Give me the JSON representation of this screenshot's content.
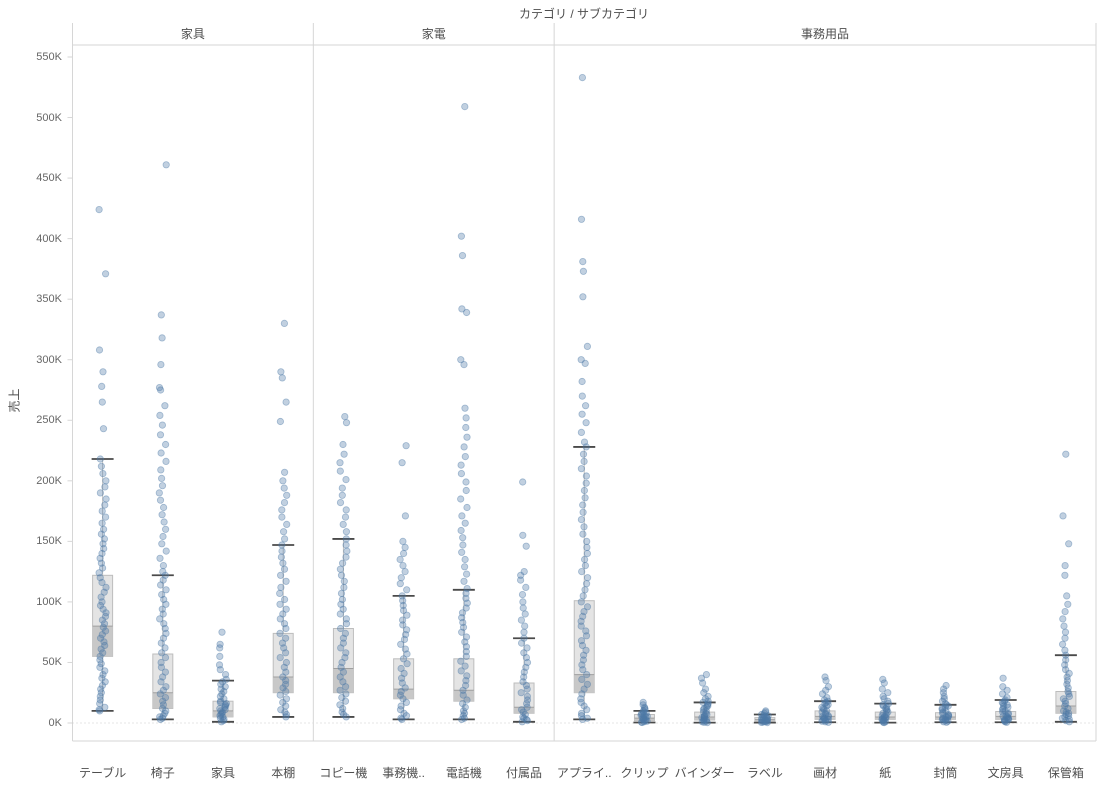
{
  "colors": {
    "point": "#4e79a7",
    "box_fill": "#e4e4e4",
    "box_fill_lower": "#c8c8c8",
    "box_border": "#bdbdbd",
    "median": "#a0a0a0",
    "whisker": "#4a4a4a",
    "whisker_line": "#c2c2c2",
    "grid": "#c9c9c9",
    "axis": "#d6d6d6",
    "header_text": "#4e4e4e",
    "tick_text": "#666666"
  },
  "chart_data": {
    "type": "scatter",
    "subtype": "boxplot-with-jittered-points",
    "title": "カテゴリ / サブカテゴリ",
    "ylabel": "売上",
    "ylim": [
      0,
      550
    ],
    "y_unit": "K",
    "y_ticks": [
      "0K",
      "50K",
      "100K",
      "150K",
      "200K",
      "250K",
      "300K",
      "350K",
      "400K",
      "450K",
      "500K",
      "550K"
    ],
    "grid": "zero-line-dotted",
    "legend": "none",
    "groups": [
      {
        "label": "家具",
        "categories": [
          "テーブル",
          "椅子",
          "家具",
          "本棚"
        ]
      },
      {
        "label": "家電",
        "categories": [
          "コピー機",
          "事務機..",
          "電話機",
          "付属品"
        ]
      },
      {
        "label": "事務用品",
        "categories": [
          "アプライ..",
          "クリップ",
          "バインダー",
          "ラベル",
          "画材",
          "紙",
          "封筒",
          "文房具",
          "保管箱"
        ]
      }
    ],
    "series": [
      {
        "label": "テーブル",
        "group": "家具",
        "box": {
          "whisker_low": 10,
          "q1": 55,
          "median": 80,
          "q3": 122,
          "whisker_high": 218
        },
        "points": [
          424,
          371,
          308,
          290,
          278,
          265,
          243,
          218,
          212,
          206,
          200,
          195,
          190,
          185,
          180,
          175,
          170,
          165,
          160,
          156,
          152,
          148,
          144,
          140,
          136,
          132,
          128,
          124,
          120,
          116,
          112,
          108,
          104,
          100,
          97,
          94,
          91,
          88,
          85,
          82,
          79,
          76,
          73,
          70,
          67,
          64,
          61,
          58,
          55,
          52,
          49,
          46,
          43,
          40,
          37,
          34,
          31,
          28,
          25,
          22,
          19,
          16,
          13,
          11,
          10
        ]
      },
      {
        "label": "椅子",
        "group": "家具",
        "box": {
          "whisker_low": 3,
          "q1": 12,
          "median": 25,
          "q3": 57,
          "whisker_high": 122
        },
        "points": [
          461,
          337,
          318,
          296,
          277,
          275,
          262,
          254,
          246,
          238,
          230,
          223,
          216,
          209,
          202,
          196,
          190,
          184,
          178,
          172,
          166,
          160,
          154,
          148,
          142,
          136,
          130,
          125,
          122,
          118,
          114,
          110,
          106,
          102,
          98,
          94,
          90,
          86,
          82,
          78,
          74,
          70,
          66,
          62,
          58,
          54,
          50,
          46,
          42,
          38,
          34,
          30,
          27,
          24,
          21,
          18,
          15,
          12,
          10,
          8,
          6,
          5,
          4,
          3
        ]
      },
      {
        "label": "家具",
        "group": "家具",
        "box": {
          "whisker_low": 1,
          "q1": 5,
          "median": 10,
          "q3": 18,
          "whisker_high": 35
        },
        "points": [
          75,
          65,
          62,
          55,
          48,
          44,
          40,
          36,
          34,
          32,
          30,
          28,
          26,
          24,
          22,
          20,
          18,
          17,
          16,
          15,
          14,
          13,
          12,
          11,
          10,
          9,
          8,
          7,
          6,
          5,
          4,
          3,
          2,
          1
        ]
      },
      {
        "label": "本棚",
        "group": "家具",
        "box": {
          "whisker_low": 5,
          "q1": 25,
          "median": 38,
          "q3": 74,
          "whisker_high": 147
        },
        "points": [
          330,
          290,
          285,
          265,
          249,
          207,
          200,
          194,
          188,
          182,
          176,
          170,
          164,
          158,
          152,
          147,
          142,
          137,
          132,
          127,
          122,
          117,
          112,
          107,
          102,
          98,
          94,
          90,
          86,
          82,
          78,
          74,
          70,
          66,
          62,
          58,
          54,
          50,
          46,
          42,
          38,
          35,
          32,
          29,
          26,
          23,
          20,
          17,
          14,
          11,
          9,
          7,
          5
        ]
      },
      {
        "label": "コピー機",
        "group": "家電",
        "box": {
          "whisker_low": 5,
          "q1": 25,
          "median": 45,
          "q3": 78,
          "whisker_high": 152
        },
        "points": [
          253,
          248,
          230,
          222,
          215,
          208,
          201,
          194,
          188,
          182,
          176,
          170,
          164,
          158,
          152,
          147,
          142,
          137,
          132,
          127,
          122,
          117,
          112,
          107,
          102,
          98,
          94,
          90,
          86,
          82,
          78,
          74,
          70,
          66,
          62,
          58,
          54,
          50,
          46,
          42,
          38,
          34,
          30,
          27,
          24,
          21,
          18,
          15,
          12,
          9,
          7,
          5
        ]
      },
      {
        "label": "事務機..",
        "group": "家電",
        "box": {
          "whisker_low": 3,
          "q1": 20,
          "median": 28,
          "q3": 53,
          "whisker_high": 105
        },
        "points": [
          229,
          215,
          171,
          150,
          145,
          140,
          135,
          130,
          125,
          120,
          115,
          110,
          105,
          101,
          97,
          93,
          89,
          85,
          81,
          77,
          73,
          69,
          65,
          61,
          57,
          53,
          49,
          45,
          41,
          37,
          33,
          29,
          26,
          23,
          20,
          17,
          14,
          11,
          8,
          6,
          4,
          3
        ]
      },
      {
        "label": "電話機",
        "group": "家電",
        "box": {
          "whisker_low": 3,
          "q1": 18,
          "median": 27,
          "q3": 53,
          "whisker_high": 110
        },
        "points": [
          509,
          402,
          386,
          342,
          339,
          300,
          296,
          260,
          252,
          244,
          236,
          228,
          220,
          213,
          206,
          199,
          192,
          185,
          178,
          171,
          165,
          159,
          153,
          147,
          141,
          135,
          129,
          123,
          117,
          111,
          107,
          103,
          99,
          95,
          91,
          87,
          83,
          79,
          75,
          71,
          67,
          63,
          59,
          55,
          51,
          47,
          43,
          39,
          35,
          31,
          27,
          23,
          19,
          16,
          13,
          10,
          8,
          6,
          4,
          3
        ]
      },
      {
        "label": "付属品",
        "group": "家電",
        "box": {
          "whisker_low": 1,
          "q1": 8,
          "median": 13,
          "q3": 33,
          "whisker_high": 70
        },
        "points": [
          199,
          155,
          146,
          125,
          122,
          118,
          112,
          106,
          100,
          95,
          90,
          85,
          80,
          75,
          70,
          66,
          62,
          58,
          54,
          50,
          46,
          42,
          38,
          34,
          31,
          28,
          25,
          22,
          19,
          16,
          13,
          11,
          9,
          7,
          5,
          4,
          3,
          2,
          1
        ]
      },
      {
        "label": "アプライ..",
        "group": "事務用品",
        "box": {
          "whisker_low": 3,
          "q1": 25,
          "median": 40,
          "q3": 101,
          "whisker_high": 228
        },
        "points": [
          533,
          416,
          381,
          373,
          352,
          311,
          300,
          297,
          282,
          270,
          262,
          255,
          248,
          240,
          232,
          228,
          222,
          216,
          210,
          204,
          198,
          192,
          186,
          180,
          174,
          168,
          162,
          156,
          150,
          145,
          140,
          135,
          130,
          125,
          120,
          115,
          110,
          105,
          100,
          96,
          92,
          88,
          84,
          80,
          76,
          72,
          68,
          64,
          60,
          56,
          52,
          48,
          44,
          40,
          36,
          32,
          28,
          24,
          20,
          17,
          14,
          11,
          8,
          6,
          4,
          3
        ]
      },
      {
        "label": "クリップ",
        "group": "事務用品",
        "box": {
          "whisker_low": 0.4,
          "q1": 2,
          "median": 4,
          "q3": 7,
          "whisker_high": 10
        },
        "points": [
          17,
          15,
          13,
          12,
          11,
          10,
          9,
          8,
          7.5,
          7,
          6.5,
          6,
          5.5,
          5,
          4.5,
          4,
          3.5,
          3,
          2.5,
          2,
          1.5,
          1,
          0.7,
          0.4
        ]
      },
      {
        "label": "バインダー",
        "group": "事務用品",
        "box": {
          "whisker_low": 0.3,
          "q1": 2.5,
          "median": 5,
          "q3": 9,
          "whisker_high": 17
        },
        "points": [
          40,
          37,
          33,
          28,
          25,
          22,
          20,
          18,
          17,
          16,
          15,
          14,
          13,
          12,
          11,
          10,
          9,
          8,
          7,
          6,
          5.5,
          5,
          4.5,
          4,
          3.5,
          3,
          2.5,
          2,
          1.5,
          1,
          0.6,
          0.3
        ]
      },
      {
        "label": "ラベル",
        "group": "事務用品",
        "box": {
          "whisker_low": 0.3,
          "q1": 1.5,
          "median": 2.8,
          "q3": 4.5,
          "whisker_high": 7
        },
        "points": [
          10,
          9,
          8,
          7,
          6.5,
          6,
          5.5,
          5,
          4.5,
          4,
          3.6,
          3.2,
          2.8,
          2.4,
          2.1,
          1.8,
          1.5,
          1.2,
          1,
          0.8,
          0.5,
          0.3
        ]
      },
      {
        "label": "画材",
        "group": "事務用品",
        "box": {
          "whisker_low": 0.6,
          "q1": 3,
          "median": 5.5,
          "q3": 10,
          "whisker_high": 18
        },
        "points": [
          38,
          35,
          30,
          27,
          24,
          21,
          19,
          18,
          17,
          16,
          15,
          14,
          13,
          12,
          11,
          10,
          9,
          8,
          7,
          6,
          5.5,
          5,
          4.5,
          4,
          3.5,
          3,
          2.5,
          2,
          1.5,
          1,
          0.6
        ]
      },
      {
        "label": "紙",
        "group": "事務用品",
        "box": {
          "whisker_low": 0.3,
          "q1": 3,
          "median": 5,
          "q3": 9,
          "whisker_high": 16
        },
        "points": [
          36,
          33,
          28,
          25,
          22,
          20,
          18,
          16,
          15,
          14,
          13,
          12,
          11,
          10,
          9,
          8,
          7,
          6,
          5.5,
          5,
          4.5,
          4,
          3.5,
          3,
          2.5,
          2,
          1.5,
          1,
          0.6,
          0.3
        ]
      },
      {
        "label": "封筒",
        "group": "事務用品",
        "box": {
          "whisker_low": 0.6,
          "q1": 3,
          "median": 5,
          "q3": 8.5,
          "whisker_high": 15
        },
        "points": [
          31,
          28,
          25,
          22,
          20,
          18,
          16,
          15,
          14,
          13,
          12,
          11,
          10,
          9,
          8,
          7,
          6,
          5.5,
          5,
          4.5,
          4,
          3.5,
          3,
          2.5,
          2,
          1.5,
          1,
          0.6
        ]
      },
      {
        "label": "文房具",
        "group": "事務用品",
        "box": {
          "whisker_low": 0.6,
          "q1": 3,
          "median": 5.5,
          "q3": 9.5,
          "whisker_high": 19
        },
        "points": [
          37,
          30,
          27,
          24,
          21,
          19,
          18,
          17,
          16,
          15,
          14,
          13,
          12,
          11,
          10,
          9,
          8,
          7,
          6,
          5.5,
          5,
          4.5,
          4,
          3.5,
          3,
          2.5,
          2,
          1.5,
          1,
          0.6
        ]
      },
      {
        "label": "保管箱",
        "group": "事務用品",
        "box": {
          "whisker_low": 1,
          "q1": 8,
          "median": 14,
          "q3": 26,
          "whisker_high": 56
        },
        "points": [
          222,
          171,
          148,
          130,
          122,
          105,
          98,
          92,
          86,
          80,
          75,
          70,
          65,
          60,
          56,
          52,
          48,
          44,
          41,
          38,
          35,
          32,
          29,
          26,
          24,
          22,
          20,
          18,
          16,
          14,
          12,
          10,
          9,
          8,
          7,
          6,
          5,
          4,
          3,
          2,
          1
        ]
      }
    ]
  }
}
